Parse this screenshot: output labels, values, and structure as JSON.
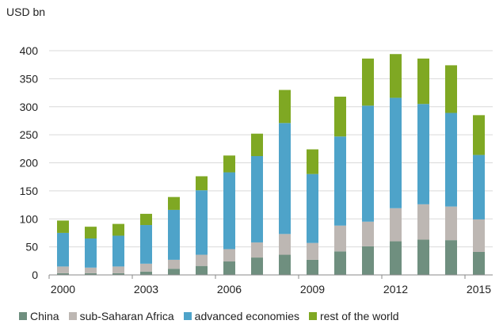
{
  "chart_data": {
    "type": "bar",
    "stacked": true,
    "title": "",
    "ylabel": "USD bn",
    "xlabel": "",
    "ylim": [
      0,
      400
    ],
    "yticks": [
      0,
      50,
      100,
      150,
      200,
      250,
      300,
      350,
      400
    ],
    "categories": [
      "2000",
      "2001",
      "2002",
      "2003",
      "2004",
      "2005",
      "2006",
      "2007",
      "2008",
      "2009",
      "2010",
      "2011",
      "2012",
      "2013",
      "2014",
      "2015"
    ],
    "xtick_labels": [
      "2000",
      "",
      "",
      "2003",
      "",
      "",
      "2006",
      "",
      "",
      "2009",
      "",
      "",
      "2012",
      "",
      "",
      "2015"
    ],
    "grid": "horizontal",
    "legend_position": "bottom",
    "series": [
      {
        "name": "China",
        "color": "#6f8f7f",
        "values": [
          3,
          3,
          3,
          6,
          11,
          16,
          24,
          31,
          36,
          27,
          42,
          51,
          60,
          63,
          62,
          41
        ]
      },
      {
        "name": "sub-Saharan Africa",
        "color": "#bdb7b3",
        "values": [
          12,
          10,
          12,
          14,
          16,
          20,
          22,
          27,
          37,
          30,
          46,
          44,
          59,
          63,
          60,
          58
        ]
      },
      {
        "name": "advanced economies",
        "color": "#4ea3c9",
        "values": [
          60,
          52,
          55,
          69,
          89,
          115,
          137,
          154,
          198,
          123,
          159,
          207,
          197,
          179,
          167,
          115
        ]
      },
      {
        "name": "rest of the world",
        "color": "#7fa823",
        "values": [
          22,
          21,
          21,
          20,
          23,
          25,
          30,
          40,
          59,
          44,
          71,
          84,
          78,
          81,
          85,
          71
        ]
      }
    ]
  }
}
